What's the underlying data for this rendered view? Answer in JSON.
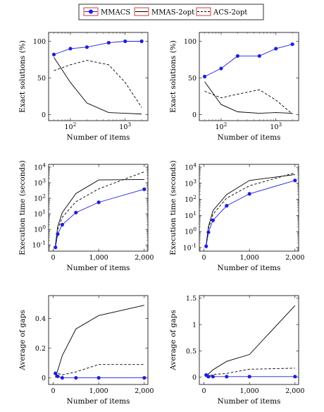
{
  "legend": {
    "entries": [
      {
        "label": "MMACS",
        "style": "blue-marker"
      },
      {
        "label": "MMAS-2opt",
        "style": "solid"
      },
      {
        "label": "ACS-2opt",
        "style": "dashed"
      }
    ]
  },
  "colors": {
    "mmacs": "#1f1fe0",
    "mmas": "#000000",
    "acs": "#000000",
    "legend_border": "#c01010"
  },
  "chart_data": [
    {
      "id": "exact-left",
      "type": "line",
      "xscale": "log",
      "xlim": [
        40,
        2600
      ],
      "ylim": [
        -8,
        112
      ],
      "xticks": [
        100,
        1000
      ],
      "xticklabels": [
        "10^2",
        "10^3"
      ],
      "yticks": [
        0,
        50,
        100
      ],
      "yticklabels": [
        "0",
        "50",
        "100"
      ],
      "xlabel": "Number of items",
      "ylabel": "Exact solutions (%)",
      "x": [
        50,
        100,
        200,
        500,
        1000,
        2000
      ],
      "series": [
        {
          "name": "MMACS",
          "values": [
            82,
            90,
            92,
            98,
            100,
            100
          ]
        },
        {
          "name": "MMAS-2opt",
          "values": [
            78,
            44,
            16,
            3,
            2,
            1
          ]
        },
        {
          "name": "ACS-2opt",
          "values": [
            60,
            68,
            74,
            68,
            44,
            10
          ]
        }
      ]
    },
    {
      "id": "exact-right",
      "type": "line",
      "xscale": "log",
      "xlim": [
        40,
        2600
      ],
      "ylim": [
        -8,
        112
      ],
      "xticks": [
        100,
        1000
      ],
      "xticklabels": [
        "10^2",
        "10^3"
      ],
      "yticks": [
        0,
        50,
        100
      ],
      "yticklabels": [
        "0",
        "50",
        "100"
      ],
      "xlabel": "Number of items",
      "ylabel": "Exact solutions (%)",
      "x": [
        50,
        100,
        200,
        500,
        1000,
        2000
      ],
      "series": [
        {
          "name": "MMACS",
          "values": [
            52,
            63,
            80,
            80,
            90,
            96
          ]
        },
        {
          "name": "MMAS-2opt",
          "values": [
            45,
            14,
            4,
            2,
            3,
            2
          ]
        },
        {
          "name": "ACS-2opt",
          "values": [
            32,
            23,
            28,
            34,
            20,
            1
          ]
        }
      ]
    },
    {
      "id": "time-left",
      "type": "line",
      "yscale": "log",
      "xlim": [
        -100,
        2080
      ],
      "ylim": [
        0.04,
        15000
      ],
      "xticks": [
        0,
        1000,
        2000
      ],
      "xticklabels": [
        "0",
        "1,000",
        "2,000"
      ],
      "yticks": [
        0.1,
        1,
        10,
        100,
        1000,
        10000
      ],
      "yticklabels": [
        "10^-1",
        "10^0",
        "10^1",
        "10^2",
        "10^3",
        "10^4"
      ],
      "xlabel": "Number of items",
      "ylabel": "Execution time (seconds)",
      "x": [
        50,
        100,
        200,
        500,
        1000,
        2000
      ],
      "series": [
        {
          "name": "MMACS",
          "values": [
            0.07,
            0.5,
            2,
            12,
            55,
            380
          ]
        },
        {
          "name": "MMAS-2opt",
          "values": [
            0.1,
            1.5,
            12,
            200,
            1500,
            1600
          ]
        },
        {
          "name": "ACS-2opt",
          "values": [
            0.08,
            1,
            6,
            60,
            400,
            5000
          ]
        }
      ]
    },
    {
      "id": "time-right",
      "type": "line",
      "yscale": "log",
      "xlim": [
        -100,
        2080
      ],
      "ylim": [
        0.06,
        15000
      ],
      "xticks": [
        0,
        1000,
        2000
      ],
      "xticklabels": [
        "0",
        "1,000",
        "2,000"
      ],
      "yticks": [
        0.1,
        1,
        10,
        100,
        1000,
        10000
      ],
      "yticklabels": [
        "10^-1",
        "10^0",
        "10^1",
        "10^2",
        "10^3",
        "10^4"
      ],
      "xlabel": "Number of items",
      "ylabel": "Execution time (seconds)",
      "x": [
        50,
        100,
        200,
        500,
        1000,
        2000
      ],
      "series": [
        {
          "name": "MMACS",
          "values": [
            0.12,
            0.9,
            5,
            40,
            220,
            1500
          ]
        },
        {
          "name": "MMAS-2opt",
          "values": [
            0.15,
            2,
            20,
            200,
            1500,
            3500
          ]
        },
        {
          "name": "ACS-2opt",
          "values": [
            0.13,
            1.5,
            12,
            120,
            700,
            4500
          ]
        }
      ]
    },
    {
      "id": "gap-left",
      "type": "line",
      "xlim": [
        -100,
        2080
      ],
      "ylim": [
        -0.045,
        0.555
      ],
      "xticks": [
        0,
        1000,
        2000
      ],
      "xticklabels": [
        "0",
        "1,000",
        "2,000"
      ],
      "yticks": [
        0,
        0.2,
        0.4
      ],
      "yticklabels": [
        "0",
        "0.2",
        "0.4"
      ],
      "xlabel": "Number of items",
      "ylabel": "Average of gaps",
      "x": [
        50,
        100,
        200,
        500,
        1000,
        2000
      ],
      "series": [
        {
          "name": "MMACS",
          "values": [
            0.03,
            0.01,
            0.0,
            0.0,
            0.0,
            0.0
          ]
        },
        {
          "name": "MMAS-2opt",
          "values": [
            0.0,
            0.05,
            0.15,
            0.33,
            0.42,
            0.49
          ]
        },
        {
          "name": "ACS-2opt",
          "values": [
            0.01,
            0.03,
            0.02,
            0.04,
            0.09,
            0.09
          ]
        }
      ]
    },
    {
      "id": "gap-right",
      "type": "line",
      "xlim": [
        -100,
        2080
      ],
      "ylim": [
        -0.14,
        1.55
      ],
      "xticks": [
        0,
        1000,
        2000
      ],
      "xticklabels": [
        "0",
        "1,000",
        "2,000"
      ],
      "yticks": [
        0,
        0.5,
        1,
        1.5
      ],
      "yticklabels": [
        "0",
        "0.5",
        "1",
        "1.5"
      ],
      "xlabel": "Number of items",
      "ylabel": "Average of gaps",
      "x": [
        50,
        100,
        200,
        500,
        1000,
        2000
      ],
      "series": [
        {
          "name": "MMACS",
          "values": [
            0.04,
            0.01,
            0.01,
            0.01,
            0.01,
            0.01
          ]
        },
        {
          "name": "MMAS-2opt",
          "values": [
            0.0,
            0.06,
            0.14,
            0.3,
            0.43,
            1.36
          ]
        },
        {
          "name": "ACS-2opt",
          "values": [
            0.02,
            0.01,
            0.05,
            0.07,
            0.15,
            0.17
          ]
        }
      ]
    }
  ]
}
